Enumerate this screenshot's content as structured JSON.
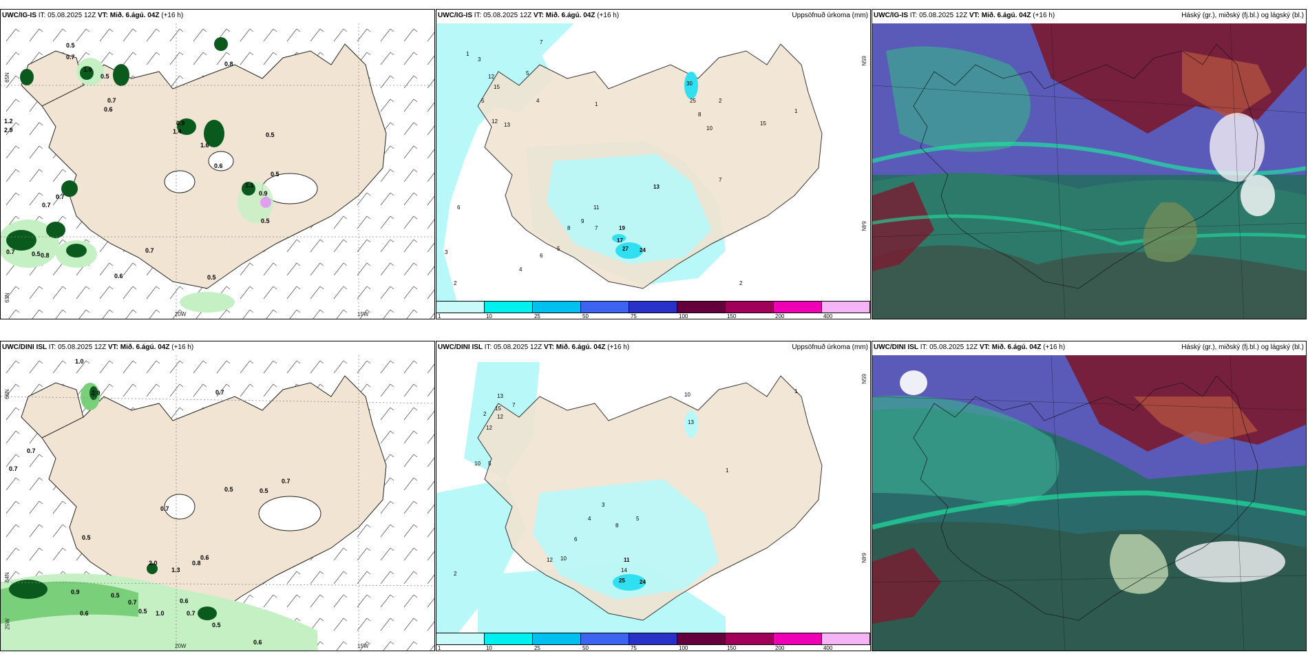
{
  "panels": [
    {
      "id": "r1c1",
      "model": "UWC/IG-IS",
      "it_label": "IT:",
      "it": "05.08.2025 12Z",
      "vt_label": "VT:",
      "vt": "Mið. 6.ágú. 04Z",
      "lead": "(+16 h)",
      "right_title": "",
      "ticks": {
        "lat1": "65N",
        "lat2": "63N",
        "lon1": "20W",
        "lon2": "15W"
      }
    },
    {
      "id": "r1c2",
      "model": "UWC/IG-IS",
      "it_label": "IT:",
      "it": "05.08.2025 12Z",
      "vt_label": "VT:",
      "vt": "Mið. 6.ágú. 04Z",
      "lead": "(+16 h)",
      "right_title": "Uppsöfnuð úrkoma (mm)",
      "ticks": {
        "lat1": "65N",
        "lat2": "64N"
      }
    },
    {
      "id": "r1c3",
      "model": "UWC/IG-IS",
      "it_label": "IT:",
      "it": "05.08.2025 12Z",
      "vt_label": "VT:",
      "vt": "Mið. 6.ágú. 04Z",
      "lead": "(+16 h)",
      "right_title": "Háský (gr.), miðský (fj.bl.) og lágský (bl.)"
    },
    {
      "id": "r2c1",
      "model": "UWC/DINI ISL",
      "it_label": "IT:",
      "it": "05.08.2025 12Z",
      "vt_label": "VT:",
      "vt": "Mið. 6.ágú. 04Z",
      "lead": "(+16 h)",
      "right_title": "",
      "ticks": {
        "lat1": "66N",
        "lat2": "64N",
        "lat3": "25W",
        "lon1": "20W",
        "lon2": "15W"
      }
    },
    {
      "id": "r2c2",
      "model": "UWC/DINI ISL",
      "it_label": "IT:",
      "it": "05.08.2025 12Z",
      "vt_label": "VT:",
      "vt": "Mið. 6.ágú. 04Z",
      "lead": "(+16 h)",
      "right_title": "Uppsöfnuð úrkoma (mm)",
      "ticks": {
        "lat1": "65N",
        "lat2": "64N"
      }
    },
    {
      "id": "r2c3",
      "model": "UWC/DINI ISL",
      "it_label": "IT:",
      "it": "05.08.2025 12Z",
      "vt_label": "VT:",
      "vt": "Mið. 6.ágú. 04Z",
      "lead": "(+16 h)",
      "right_title": "Háský (gr.), miðský (fj.bl.) og lágský (bl.)"
    }
  ],
  "colorbar": {
    "labels": [
      "1",
      "10",
      "25",
      "50",
      "75",
      "100",
      "150",
      "200",
      "400"
    ],
    "colors": [
      "#c8fafa",
      "#00f0f0",
      "#00c0f0",
      "#3c64f0",
      "#2832c8",
      "#64003c",
      "#a0005a",
      "#f000b4",
      "#f5b4f5"
    ]
  },
  "map_colors": {
    "land": "#f1e4d3",
    "water": "#ffffff",
    "precip_light": "#b8f8f8",
    "precip_mid": "#30e0f0",
    "green_light": "#c4f0c4",
    "green_dark": "#0a5a1e",
    "cloud_high": "#7a1a30",
    "cloud_mid": "#4a4ab8",
    "cloud_low": "#2a8a6a"
  },
  "precip_values_r1c1": [
    "0.5",
    "0.7",
    "0.8",
    "1.0",
    "0.5",
    "0.6",
    "0.8",
    "0.6",
    "0.7",
    "1.2",
    "2.9",
    "0.9",
    "1.4",
    "1.6",
    "0.5",
    "0.6",
    "1.1",
    "0.9",
    "0.5",
    "0.7",
    "0.8",
    "0.5",
    "0.7",
    "0.6",
    "0.5",
    "0.7"
  ],
  "precip_values_r1c2": [
    "7",
    "3",
    "12",
    "15",
    "5",
    "12",
    "13",
    "3",
    "4",
    "5",
    "30",
    "25",
    "8",
    "10",
    "2",
    "15",
    "19",
    "17",
    "27",
    "24",
    "13",
    "11",
    "5",
    "6",
    "7",
    "8",
    "9",
    "2",
    "3",
    "1"
  ],
  "precip_values_r2c1": [
    "1.0",
    "2.9",
    "0.7",
    "0.7",
    "0.7",
    "0.5",
    "0.5",
    "0.7",
    "0.5",
    "0.6",
    "2.0",
    "1.3",
    "0.8",
    "0.6",
    "0.5",
    "0.7",
    "1.0",
    "0.6",
    "0.6",
    "0.7",
    "0.5",
    "0.6"
  ],
  "precip_values_r2c2": [
    "13",
    "12",
    "15",
    "2",
    "10",
    "8",
    "7",
    "13",
    "5",
    "4",
    "3",
    "6",
    "11",
    "14",
    "25",
    "24",
    "10",
    "12",
    "2",
    "1"
  ]
}
